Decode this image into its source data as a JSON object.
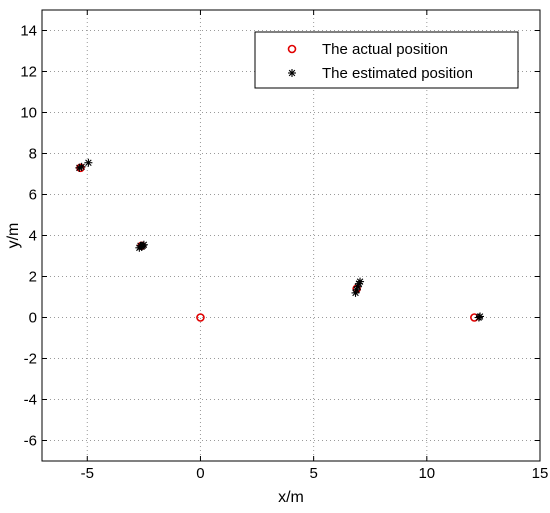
{
  "chart_data": {
    "type": "scatter",
    "xlabel": "x/m",
    "ylabel": "y/m",
    "xlim": [
      -7,
      15
    ],
    "ylim": [
      -7,
      15
    ],
    "xticks": [
      -5,
      0,
      5,
      10,
      15
    ],
    "yticks": [
      -6,
      -4,
      -2,
      0,
      2,
      4,
      6,
      8,
      10,
      12,
      14
    ],
    "grid": true,
    "legend_position": "top-right",
    "series": [
      {
        "name": "The actual position",
        "marker": "circle",
        "color": "#e00000",
        "points": [
          {
            "x": -5.3,
            "y": 7.3
          },
          {
            "x": -2.6,
            "y": 3.5
          },
          {
            "x": 0,
            "y": 0
          },
          {
            "x": 6.9,
            "y": 1.4
          },
          {
            "x": 12.1,
            "y": 0
          }
        ]
      },
      {
        "name": "The estimated position",
        "marker": "asterisk",
        "color": "#000000",
        "points": [
          {
            "x": -5.35,
            "y": 7.3
          },
          {
            "x": -5.25,
            "y": 7.35
          },
          {
            "x": -4.95,
            "y": 7.55
          },
          {
            "x": -2.7,
            "y": 3.4
          },
          {
            "x": -2.6,
            "y": 3.45
          },
          {
            "x": -2.55,
            "y": 3.5
          },
          {
            "x": -2.5,
            "y": 3.55
          },
          {
            "x": -2.65,
            "y": 3.5
          },
          {
            "x": 6.85,
            "y": 1.2
          },
          {
            "x": 6.9,
            "y": 1.35
          },
          {
            "x": 6.95,
            "y": 1.5
          },
          {
            "x": 7.0,
            "y": 1.65
          },
          {
            "x": 7.05,
            "y": 1.75
          },
          {
            "x": 12.3,
            "y": 0.0
          },
          {
            "x": 12.35,
            "y": 0.05
          }
        ]
      }
    ]
  }
}
